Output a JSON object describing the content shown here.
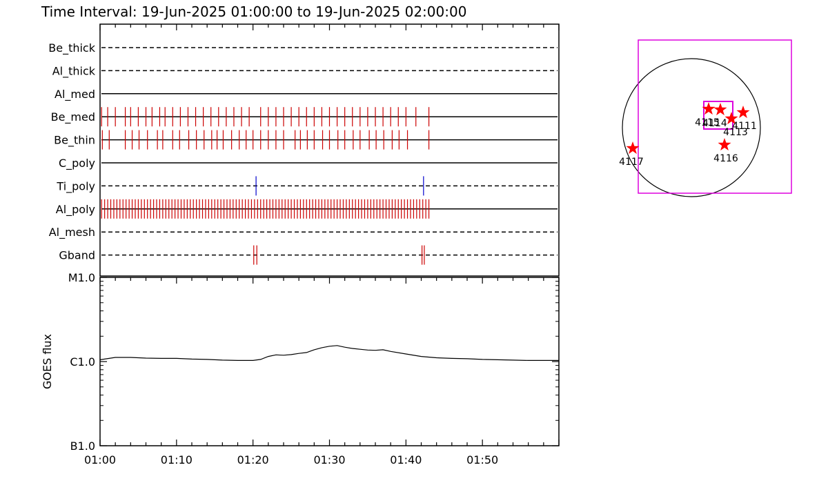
{
  "header": {
    "title": "Time Interval: 19-Jun-2025 01:00:00 to 19-Jun-2025 02:00:00"
  },
  "chart_data": [
    {
      "type": "timeline",
      "x_range_minutes": [
        0,
        60
      ],
      "colors": {
        "main": "#cc0000",
        "alt": "#0000cc",
        "axis": "#000000"
      },
      "rows": [
        {
          "name": "Be_thick",
          "style": "dashed",
          "marks": []
        },
        {
          "name": "Al_thick",
          "style": "dashed",
          "marks": []
        },
        {
          "name": "Al_med",
          "style": "solid",
          "marks": []
        },
        {
          "name": "Be_med",
          "style": "solid",
          "marks": [
            0.2,
            1.0,
            2.0,
            3.3,
            4.0,
            5.0,
            6.0,
            6.8,
            7.8,
            8.5,
            9.5,
            10.5,
            11.5,
            12.5,
            13.5,
            14.5,
            15.5,
            16.5,
            17.5,
            18.5,
            19.5,
            21.0,
            22.0,
            23.0,
            24.0,
            25.0,
            26.0,
            27.0,
            28.0,
            29.0,
            30.0,
            31.0,
            32.0,
            33.0,
            34.0,
            35.0,
            36.0,
            37.0,
            38.0,
            39.0,
            40.0,
            41.3,
            43.0
          ],
          "marks_alt": []
        },
        {
          "name": "Be_thin",
          "style": "solid",
          "marks": [
            0.3,
            1.2,
            3.3,
            4.2,
            5.1,
            6.2,
            7.5,
            8.2,
            9.5,
            10.4,
            11.6,
            12.6,
            13.6,
            14.6,
            15.3,
            16.1,
            17.2,
            18.2,
            19.1,
            20.0,
            21.0,
            22.0,
            23.0,
            24.0,
            25.5,
            26.2,
            27.1,
            28.0,
            29.1,
            30.0,
            31.1,
            32.0,
            33.1,
            34.0,
            35.2,
            36.1,
            37.1,
            38.2,
            39.1,
            40.2,
            43.0
          ],
          "marks_alt": []
        },
        {
          "name": "C_poly",
          "style": "solid",
          "marks": []
        },
        {
          "name": "Ti_poly",
          "style": "dashed",
          "marks": [],
          "marks_alt": [
            20.4,
            42.3
          ]
        },
        {
          "name": "Al_poly",
          "style": "solid",
          "marks": [
            0.2,
            0.6,
            1.0,
            1.4,
            1.8,
            2.2,
            2.6,
            3.0,
            3.4,
            3.8,
            4.2,
            4.6,
            5.0,
            5.4,
            5.8,
            6.2,
            6.6,
            7.0,
            7.4,
            7.8,
            8.2,
            8.6,
            9.0,
            9.4,
            9.8,
            10.2,
            10.6,
            11.0,
            11.4,
            11.8,
            12.2,
            12.6,
            13.0,
            13.4,
            13.8,
            14.2,
            14.6,
            15.0,
            15.4,
            15.8,
            16.2,
            16.6,
            17.0,
            17.4,
            17.8,
            18.2,
            18.6,
            19.0,
            19.4,
            19.8,
            20.2,
            20.6,
            21.0,
            21.4,
            21.8,
            22.2,
            22.6,
            23.0,
            23.4,
            23.8,
            24.2,
            24.6,
            25.0,
            25.4,
            25.8,
            26.2,
            26.6,
            27.0,
            27.4,
            27.8,
            28.2,
            28.6,
            29.0,
            29.4,
            29.8,
            30.2,
            30.6,
            31.0,
            31.4,
            31.8,
            32.2,
            32.6,
            33.0,
            33.4,
            33.8,
            34.2,
            34.6,
            35.0,
            35.4,
            35.8,
            36.2,
            36.6,
            37.0,
            37.4,
            37.8,
            38.2,
            38.6,
            39.0,
            39.4,
            39.8,
            40.2,
            40.6,
            41.0,
            41.4,
            41.8,
            42.2,
            42.6,
            43.0
          ],
          "marks_alt": []
        },
        {
          "name": "Al_mesh",
          "style": "dashed",
          "marks": []
        },
        {
          "name": "Gband",
          "style": "dashed",
          "marks": [
            20.1,
            20.5,
            42.1,
            42.4
          ],
          "marks_alt": []
        }
      ]
    },
    {
      "type": "line",
      "ylabel": "GOES flux",
      "yscale": "log",
      "y_ticks": [
        {
          "label": "M1.0",
          "value": 1e-05
        },
        {
          "label": "C1.0",
          "value": 1e-06
        },
        {
          "label": "B1.0",
          "value": 1e-07
        }
      ],
      "ylim": [
        1e-07,
        1e-05
      ],
      "x_ticks": [
        "01:00",
        "01:10",
        "01:20",
        "01:30",
        "01:40",
        "01:50"
      ],
      "x_tick_values_minutes": [
        0,
        10,
        20,
        30,
        40,
        50
      ],
      "xlim_minutes": [
        0,
        60
      ],
      "series": [
        {
          "color": "#000000",
          "x_minutes": [
            0,
            2,
            4,
            6,
            8,
            10,
            12,
            14,
            16,
            18,
            20,
            21,
            22,
            23,
            24,
            25,
            26,
            27,
            28,
            29,
            30,
            31,
            32,
            33,
            34,
            35,
            36,
            37,
            38,
            40,
            42,
            44,
            46,
            48,
            50,
            52,
            54,
            56,
            58,
            60
          ],
          "y": [
            1.05e-06,
            1.12e-06,
            1.12e-06,
            1.1e-06,
            1.09e-06,
            1.09e-06,
            1.07e-06,
            1.06e-06,
            1.04e-06,
            1.03e-06,
            1.03e-06,
            1.06e-06,
            1.15e-06,
            1.2e-06,
            1.19e-06,
            1.21e-06,
            1.25e-06,
            1.28e-06,
            1.38e-06,
            1.46e-06,
            1.52e-06,
            1.55e-06,
            1.48e-06,
            1.43e-06,
            1.4e-06,
            1.37e-06,
            1.36e-06,
            1.38e-06,
            1.32e-06,
            1.23e-06,
            1.15e-06,
            1.11e-06,
            1.09e-06,
            1.08e-06,
            1.06e-06,
            1.05e-06,
            1.04e-06,
            1.03e-06,
            1.03e-06,
            1.03e-06
          ]
        }
      ]
    },
    {
      "type": "scatter",
      "colors": {
        "disk": "#000000",
        "fov": "#dd00dd",
        "star": "#ff0000"
      },
      "regions": [
        {
          "label": "4115",
          "x": 0.25,
          "y": 0.27
        },
        {
          "label": "4114",
          "x": 0.42,
          "y": 0.26
        },
        {
          "label": "4113",
          "x": 0.58,
          "y": 0.13
        },
        {
          "label": "4111",
          "x": 0.75,
          "y": 0.22
        },
        {
          "label": "4116",
          "x": 0.48,
          "y": -0.25
        },
        {
          "label": "4117",
          "x": -0.85,
          "y": -0.3
        }
      ],
      "labels_display": [
        "4115",
        "4114",
        "4113",
        "4111",
        "4116",
        "4117"
      ]
    }
  ]
}
